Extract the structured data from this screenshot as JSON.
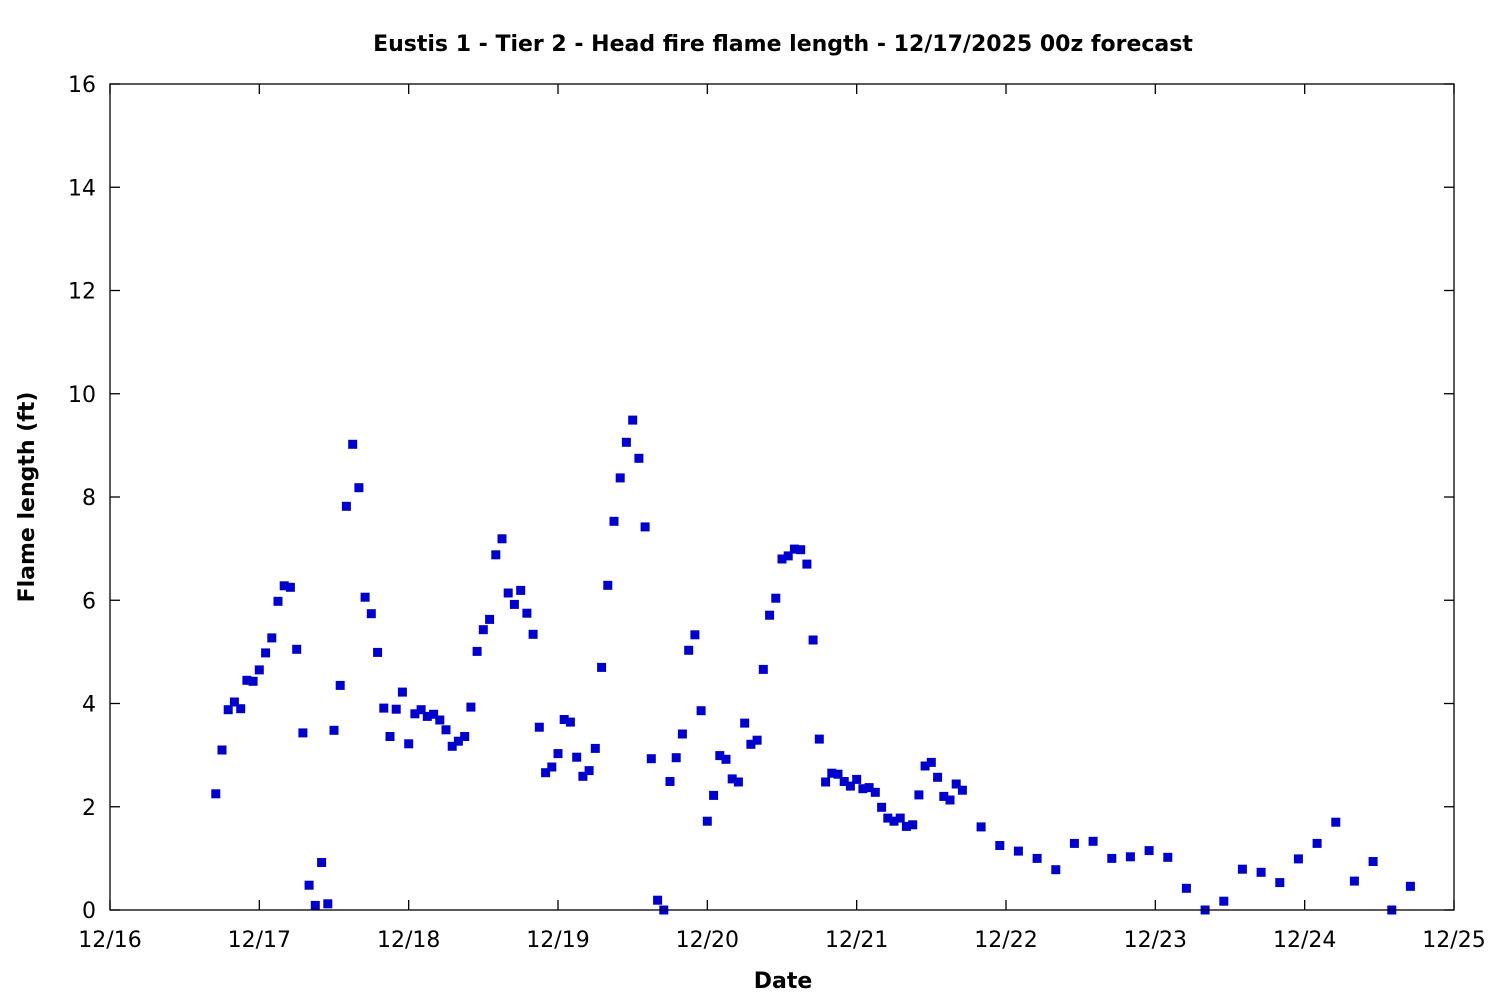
{
  "chart_data": {
    "type": "scatter",
    "title": "Eustis 1 - Tier 2 - Head fire flame length - 12/17/2025 00z forecast",
    "xlabel": "Date",
    "ylabel": "Flame length (ft)",
    "x_axis": {
      "unit": "date",
      "range": [
        "2025-12-16",
        "2025-12-25"
      ],
      "ticks": [
        "12/16",
        "12/17",
        "12/18",
        "12/19",
        "12/20",
        "12/21",
        "12/22",
        "12/23",
        "12/24",
        "12/25"
      ]
    },
    "ylim": [
      0,
      16
    ],
    "yticks": [
      "0",
      "2",
      "4",
      "6",
      "8",
      "10",
      "12",
      "14",
      "16"
    ],
    "grid": false,
    "marker": "square",
    "color": "#0000cc",
    "series": [
      {
        "points": [
          [
            "2025-12-16T17:00",
            2.25
          ],
          [
            "2025-12-16T18:00",
            3.1
          ],
          [
            "2025-12-16T19:00",
            3.88
          ],
          [
            "2025-12-16T20:00",
            4.03
          ],
          [
            "2025-12-16T21:00",
            3.9
          ],
          [
            "2025-12-16T22:00",
            4.45
          ],
          [
            "2025-12-16T23:00",
            4.43
          ],
          [
            "2025-12-17T00:00",
            4.65
          ],
          [
            "2025-12-17T01:00",
            4.98
          ],
          [
            "2025-12-17T02:00",
            5.27
          ],
          [
            "2025-12-17T03:00",
            5.98
          ],
          [
            "2025-12-17T04:00",
            6.28
          ],
          [
            "2025-12-17T05:00",
            6.25
          ],
          [
            "2025-12-17T06:00",
            5.05
          ],
          [
            "2025-12-17T07:00",
            3.43
          ],
          [
            "2025-12-17T08:00",
            0.48
          ],
          [
            "2025-12-17T09:00",
            0.09
          ],
          [
            "2025-12-17T10:00",
            0.92
          ],
          [
            "2025-12-17T11:00",
            0.12
          ],
          [
            "2025-12-17T12:00",
            3.48
          ],
          [
            "2025-12-17T13:00",
            4.35
          ],
          [
            "2025-12-17T14:00",
            7.82
          ],
          [
            "2025-12-17T15:00",
            9.02
          ],
          [
            "2025-12-17T16:00",
            8.18
          ],
          [
            "2025-12-17T17:00",
            6.06
          ],
          [
            "2025-12-17T18:00",
            5.74
          ],
          [
            "2025-12-17T19:00",
            4.99
          ],
          [
            "2025-12-17T20:00",
            3.91
          ],
          [
            "2025-12-17T21:00",
            3.36
          ],
          [
            "2025-12-17T22:00",
            3.89
          ],
          [
            "2025-12-17T23:00",
            4.22
          ],
          [
            "2025-12-18T00:00",
            3.22
          ],
          [
            "2025-12-18T01:00",
            3.8
          ],
          [
            "2025-12-18T02:00",
            3.88
          ],
          [
            "2025-12-18T03:00",
            3.75
          ],
          [
            "2025-12-18T04:00",
            3.79
          ],
          [
            "2025-12-18T05:00",
            3.68
          ],
          [
            "2025-12-18T06:00",
            3.49
          ],
          [
            "2025-12-18T07:00",
            3.17
          ],
          [
            "2025-12-18T08:00",
            3.27
          ],
          [
            "2025-12-18T09:00",
            3.36
          ],
          [
            "2025-12-18T10:00",
            3.93
          ],
          [
            "2025-12-18T11:00",
            5.01
          ],
          [
            "2025-12-18T12:00",
            5.43
          ],
          [
            "2025-12-18T13:00",
            5.63
          ],
          [
            "2025-12-18T14:00",
            6.88
          ],
          [
            "2025-12-18T15:00",
            7.19
          ],
          [
            "2025-12-18T16:00",
            6.14
          ],
          [
            "2025-12-18T17:00",
            5.92
          ],
          [
            "2025-12-18T18:00",
            6.19
          ],
          [
            "2025-12-18T19:00",
            5.75
          ],
          [
            "2025-12-18T20:00",
            5.34
          ],
          [
            "2025-12-18T21:00",
            3.54
          ],
          [
            "2025-12-18T22:00",
            2.66
          ],
          [
            "2025-12-18T23:00",
            2.77
          ],
          [
            "2025-12-19T00:00",
            3.03
          ],
          [
            "2025-12-19T01:00",
            3.69
          ],
          [
            "2025-12-19T02:00",
            3.64
          ],
          [
            "2025-12-19T03:00",
            2.96
          ],
          [
            "2025-12-19T04:00",
            2.59
          ],
          [
            "2025-12-19T05:00",
            2.7
          ],
          [
            "2025-12-19T06:00",
            3.13
          ],
          [
            "2025-12-19T07:00",
            4.7
          ],
          [
            "2025-12-19T08:00",
            6.29
          ],
          [
            "2025-12-19T09:00",
            7.53
          ],
          [
            "2025-12-19T10:00",
            8.37
          ],
          [
            "2025-12-19T11:00",
            9.06
          ],
          [
            "2025-12-19T12:00",
            9.49
          ],
          [
            "2025-12-19T13:00",
            8.75
          ],
          [
            "2025-12-19T14:00",
            7.42
          ],
          [
            "2025-12-19T15:00",
            2.93
          ],
          [
            "2025-12-19T16:00",
            0.19
          ],
          [
            "2025-12-19T17:00",
            0.0
          ],
          [
            "2025-12-19T18:00",
            2.49
          ],
          [
            "2025-12-19T19:00",
            2.95
          ],
          [
            "2025-12-19T20:00",
            3.41
          ],
          [
            "2025-12-19T21:00",
            5.03
          ],
          [
            "2025-12-19T22:00",
            5.33
          ],
          [
            "2025-12-19T23:00",
            3.86
          ],
          [
            "2025-12-20T00:00",
            1.72
          ],
          [
            "2025-12-20T01:00",
            2.22
          ],
          [
            "2025-12-20T02:00",
            2.99
          ],
          [
            "2025-12-20T03:00",
            2.92
          ],
          [
            "2025-12-20T04:00",
            2.54
          ],
          [
            "2025-12-20T05:00",
            2.48
          ],
          [
            "2025-12-20T06:00",
            3.62
          ],
          [
            "2025-12-20T07:00",
            3.21
          ],
          [
            "2025-12-20T08:00",
            3.29
          ],
          [
            "2025-12-20T09:00",
            4.66
          ],
          [
            "2025-12-20T10:00",
            5.71
          ],
          [
            "2025-12-20T11:00",
            6.04
          ],
          [
            "2025-12-20T12:00",
            6.8
          ],
          [
            "2025-12-20T13:00",
            6.86
          ],
          [
            "2025-12-20T14:00",
            6.99
          ],
          [
            "2025-12-20T15:00",
            6.98
          ],
          [
            "2025-12-20T16:00",
            6.7
          ],
          [
            "2025-12-20T17:00",
            5.23
          ],
          [
            "2025-12-20T18:00",
            3.31
          ],
          [
            "2025-12-20T19:00",
            2.48
          ],
          [
            "2025-12-20T20:00",
            2.65
          ],
          [
            "2025-12-20T21:00",
            2.63
          ],
          [
            "2025-12-20T22:00",
            2.49
          ],
          [
            "2025-12-20T23:00",
            2.4
          ],
          [
            "2025-12-21T00:00",
            2.53
          ],
          [
            "2025-12-21T01:00",
            2.35
          ],
          [
            "2025-12-21T02:00",
            2.37
          ],
          [
            "2025-12-21T03:00",
            2.28
          ],
          [
            "2025-12-21T04:00",
            1.99
          ],
          [
            "2025-12-21T05:00",
            1.78
          ],
          [
            "2025-12-21T06:00",
            1.72
          ],
          [
            "2025-12-21T07:00",
            1.78
          ],
          [
            "2025-12-21T08:00",
            1.62
          ],
          [
            "2025-12-21T09:00",
            1.65
          ],
          [
            "2025-12-21T10:00",
            2.23
          ],
          [
            "2025-12-21T11:00",
            2.79
          ],
          [
            "2025-12-21T12:00",
            2.86
          ],
          [
            "2025-12-21T13:00",
            2.57
          ],
          [
            "2025-12-21T14:00",
            2.2
          ],
          [
            "2025-12-21T15:00",
            2.13
          ],
          [
            "2025-12-21T16:00",
            2.44
          ],
          [
            "2025-12-21T17:00",
            2.32
          ],
          [
            "2025-12-21T20:00",
            1.61
          ],
          [
            "2025-12-21T23:00",
            1.25
          ],
          [
            "2025-12-22T02:00",
            1.14
          ],
          [
            "2025-12-22T05:00",
            1.0
          ],
          [
            "2025-12-22T08:00",
            0.78
          ],
          [
            "2025-12-22T11:00",
            1.29
          ],
          [
            "2025-12-22T14:00",
            1.33
          ],
          [
            "2025-12-22T17:00",
            1.0
          ],
          [
            "2025-12-22T20:00",
            1.03
          ],
          [
            "2025-12-22T23:00",
            1.15
          ],
          [
            "2025-12-23T02:00",
            1.02
          ],
          [
            "2025-12-23T05:00",
            0.42
          ],
          [
            "2025-12-23T08:00",
            0.0
          ],
          [
            "2025-12-23T11:00",
            0.17
          ],
          [
            "2025-12-23T14:00",
            0.79
          ],
          [
            "2025-12-23T17:00",
            0.73
          ],
          [
            "2025-12-23T20:00",
            0.53
          ],
          [
            "2025-12-23T23:00",
            0.99
          ],
          [
            "2025-12-24T02:00",
            1.29
          ],
          [
            "2025-12-24T05:00",
            1.7
          ],
          [
            "2025-12-24T08:00",
            0.56
          ],
          [
            "2025-12-24T11:00",
            0.94
          ],
          [
            "2025-12-24T14:00",
            0.0
          ],
          [
            "2025-12-24T17:00",
            0.46
          ]
        ]
      }
    ]
  }
}
